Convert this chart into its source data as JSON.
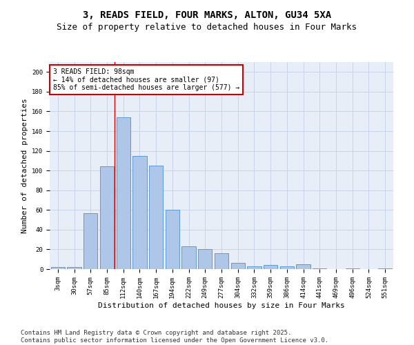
{
  "title": "3, READS FIELD, FOUR MARKS, ALTON, GU34 5XA",
  "subtitle": "Size of property relative to detached houses in Four Marks",
  "xlabel": "Distribution of detached houses by size in Four Marks",
  "ylabel": "Number of detached properties",
  "categories": [
    "3sqm",
    "30sqm",
    "57sqm",
    "85sqm",
    "112sqm",
    "140sqm",
    "167sqm",
    "194sqm",
    "222sqm",
    "249sqm",
    "277sqm",
    "304sqm",
    "332sqm",
    "359sqm",
    "386sqm",
    "414sqm",
    "441sqm",
    "469sqm",
    "496sqm",
    "524sqm",
    "551sqm"
  ],
  "values": [
    2,
    2,
    57,
    104,
    154,
    115,
    105,
    60,
    23,
    20,
    16,
    6,
    3,
    4,
    3,
    5,
    1,
    0,
    1,
    0,
    1
  ],
  "bar_color": "#aec6e8",
  "bar_edge_color": "#5b9bd5",
  "grid_color": "#c8d4e8",
  "background_color": "#e8eef8",
  "vline_color": "#cc0000",
  "vline_x_index": 3.48,
  "annotation_text": "3 READS FIELD: 98sqm\n← 14% of detached houses are smaller (97)\n85% of semi-detached houses are larger (577) →",
  "annotation_box_color": "#ffffff",
  "annotation_box_edge": "#cc0000",
  "ylim": [
    0,
    210
  ],
  "yticks": [
    0,
    20,
    40,
    60,
    80,
    100,
    120,
    140,
    160,
    180,
    200
  ],
  "footer": "Contains HM Land Registry data © Crown copyright and database right 2025.\nContains public sector information licensed under the Open Government Licence v3.0.",
  "title_fontsize": 10,
  "subtitle_fontsize": 9,
  "xlabel_fontsize": 8,
  "ylabel_fontsize": 8,
  "tick_fontsize": 6.5,
  "ann_fontsize": 7,
  "footer_fontsize": 6.5
}
